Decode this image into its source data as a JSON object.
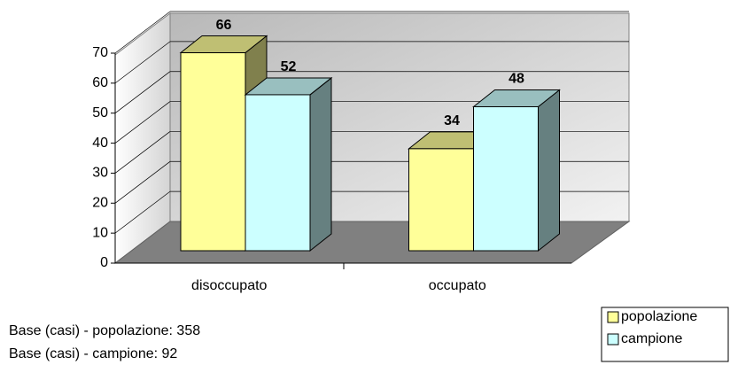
{
  "chart_data": {
    "type": "bar3d",
    "categories": [
      "disoccupato",
      "occupato"
    ],
    "series": [
      {
        "name": "popolazione",
        "color": "#ffff99",
        "values": [
          66,
          34
        ]
      },
      {
        "name": "campione",
        "color": "#ccffff",
        "values": [
          52,
          48
        ]
      }
    ],
    "ylim": [
      0,
      70
    ],
    "yticks": [
      0,
      10,
      20,
      30,
      40,
      50,
      60,
      70
    ],
    "grid": true,
    "legend": "bottom-right",
    "notes": [
      "Base (casi) - popolazione: 358",
      "Base (casi) - campione: 92"
    ]
  }
}
